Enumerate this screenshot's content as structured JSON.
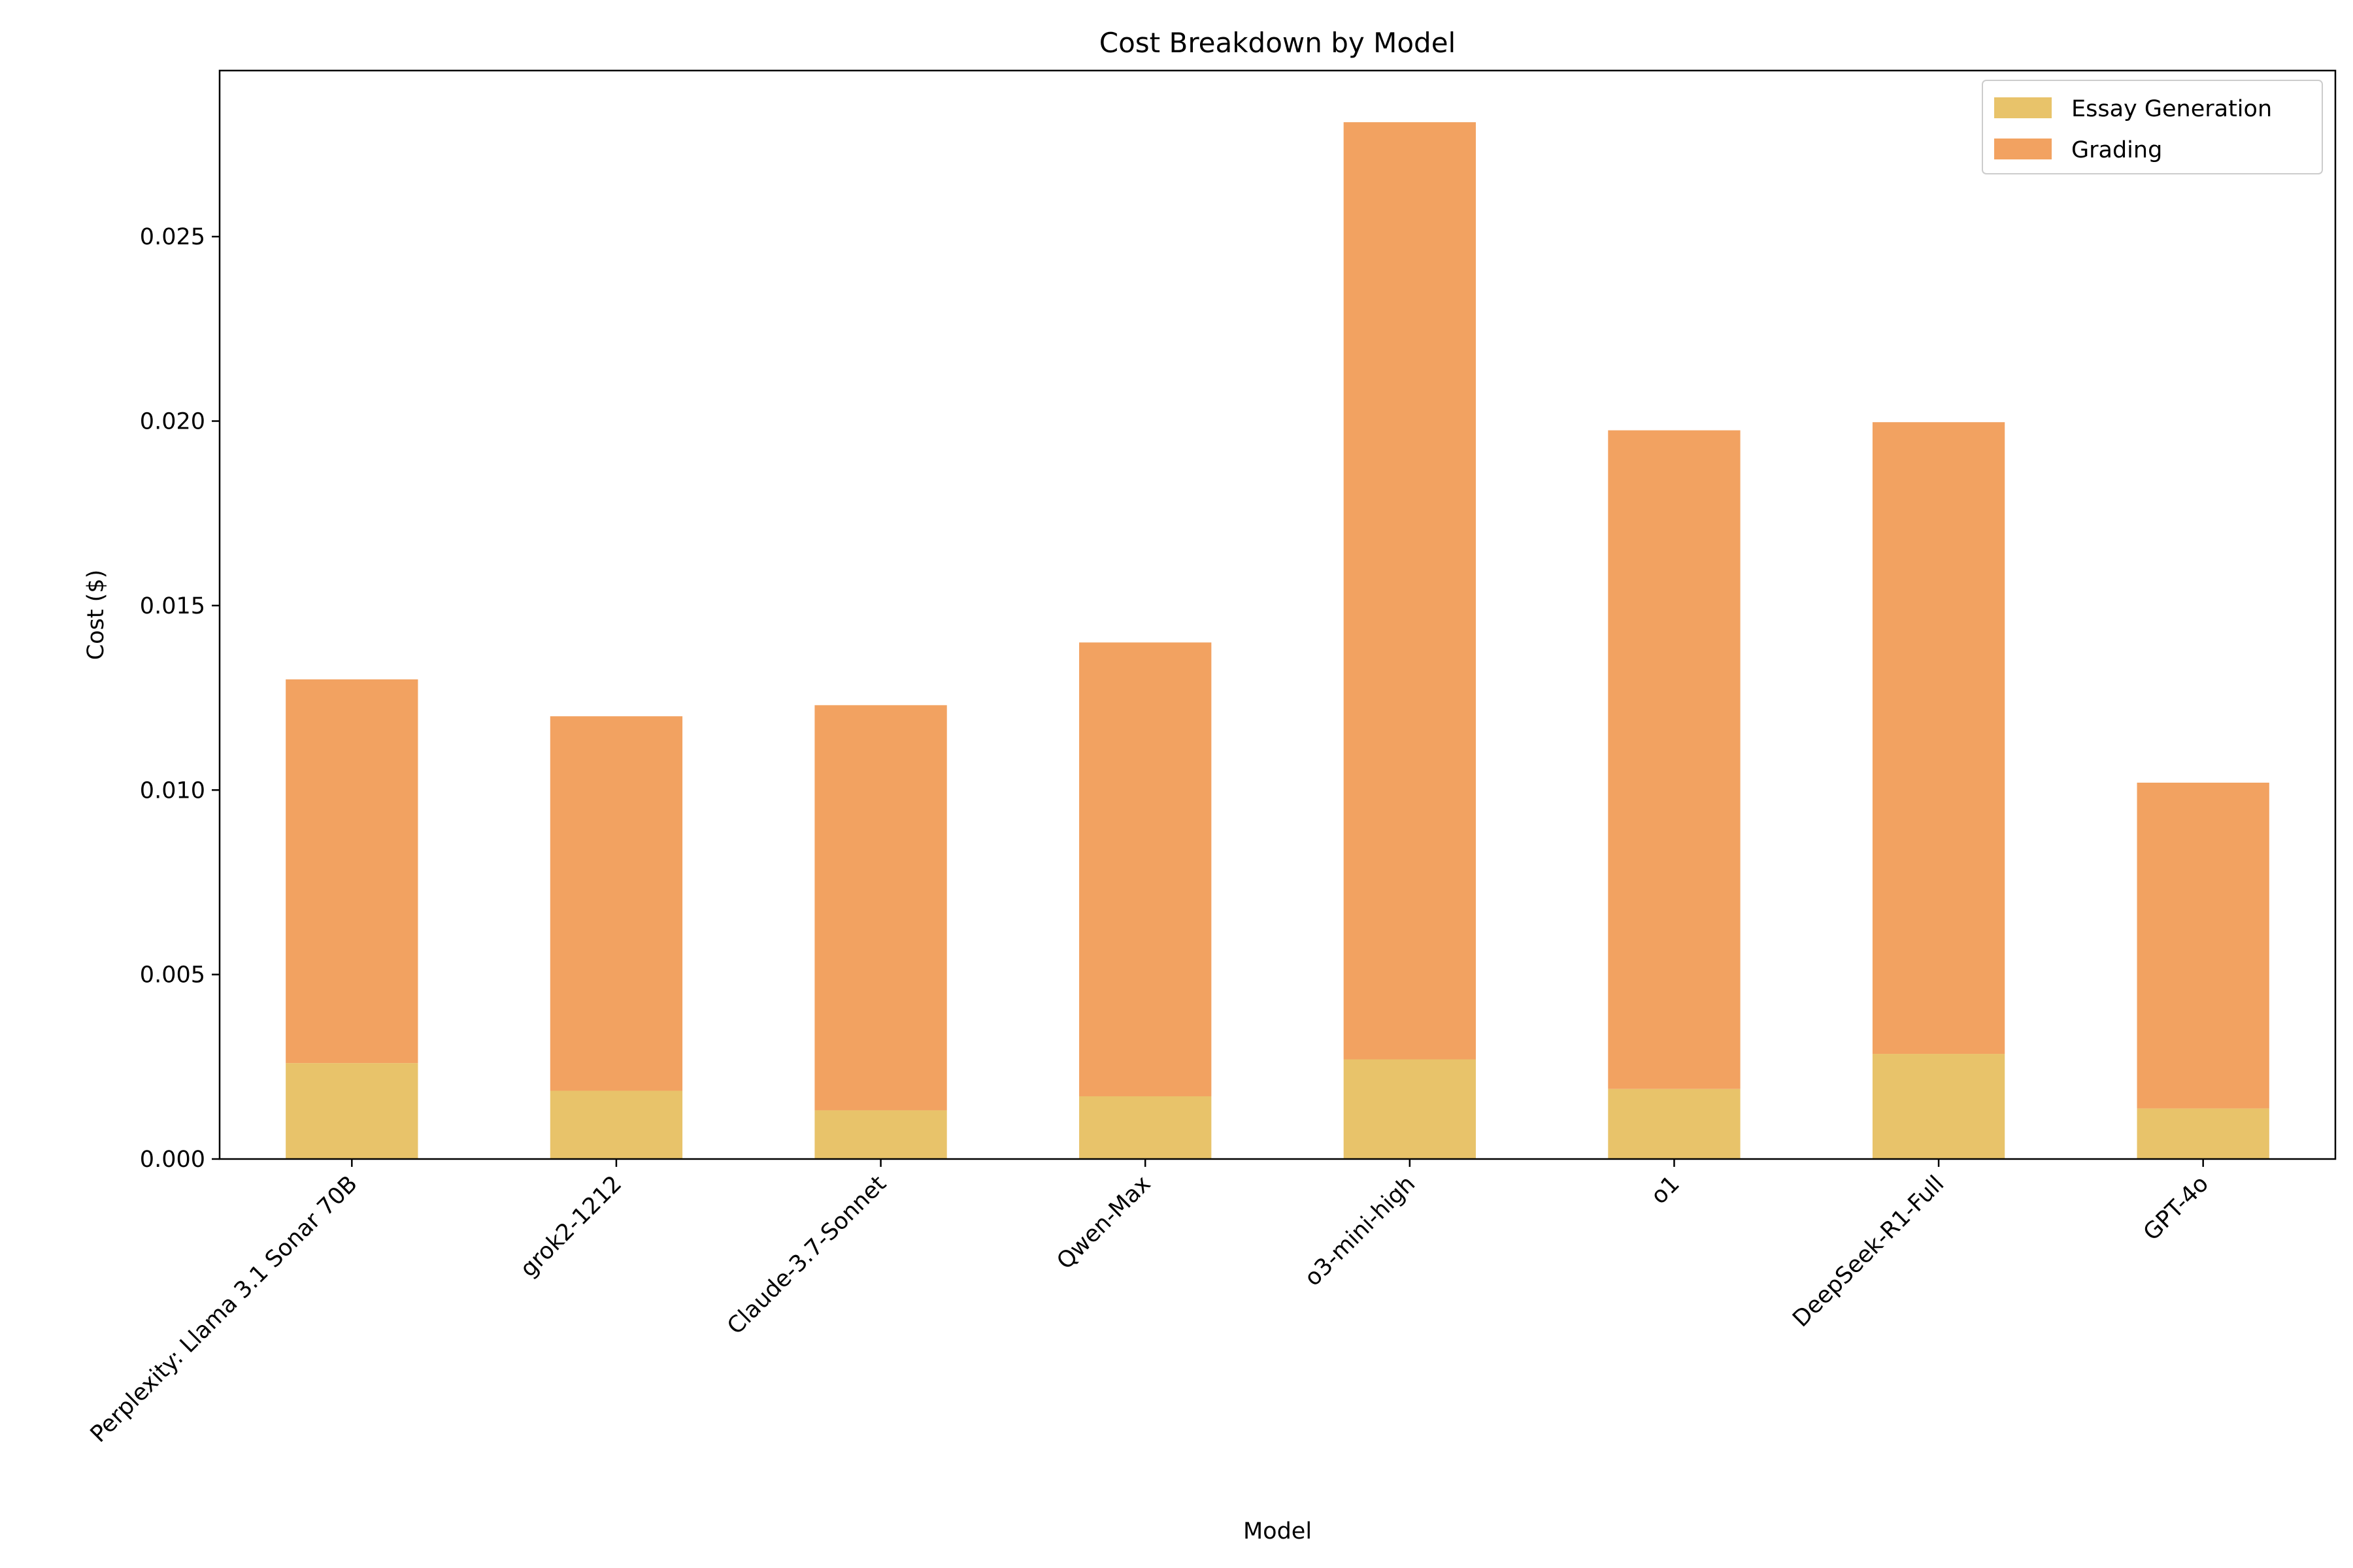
{
  "chart_data": {
    "type": "bar",
    "stacked": true,
    "title": "Cost Breakdown by Model",
    "xlabel": "Model",
    "ylabel": "Cost ($)",
    "ylim": [
      0,
      0.0295
    ],
    "yticks": [
      "0.000",
      "0.005",
      "0.010",
      "0.015",
      "0.020",
      "0.025"
    ],
    "ytick_values": [
      0,
      0.005,
      0.01,
      0.015,
      0.02,
      0.025
    ],
    "grid": false,
    "legend_position": "top-right",
    "categories": [
      "Perplexity: Llama 3.1 Sonar 70B",
      "grok2-1212",
      "Claude-3.7-Sonnet",
      "Qwen-Max",
      "o3-mini-high",
      "o1",
      "DeepSeek-R1-Full",
      "GPT-4o"
    ],
    "series": [
      {
        "name": "Essay Generation",
        "color": "#e8c36a",
        "values": [
          0.0026,
          0.00185,
          0.00132,
          0.0017,
          0.0027,
          0.0019,
          0.00285,
          0.00137
        ]
      },
      {
        "name": "Grading",
        "color": "#f2a261",
        "values": [
          0.0104,
          0.01015,
          0.01098,
          0.0123,
          0.0254,
          0.01785,
          0.01712,
          0.00883
        ]
      }
    ]
  }
}
